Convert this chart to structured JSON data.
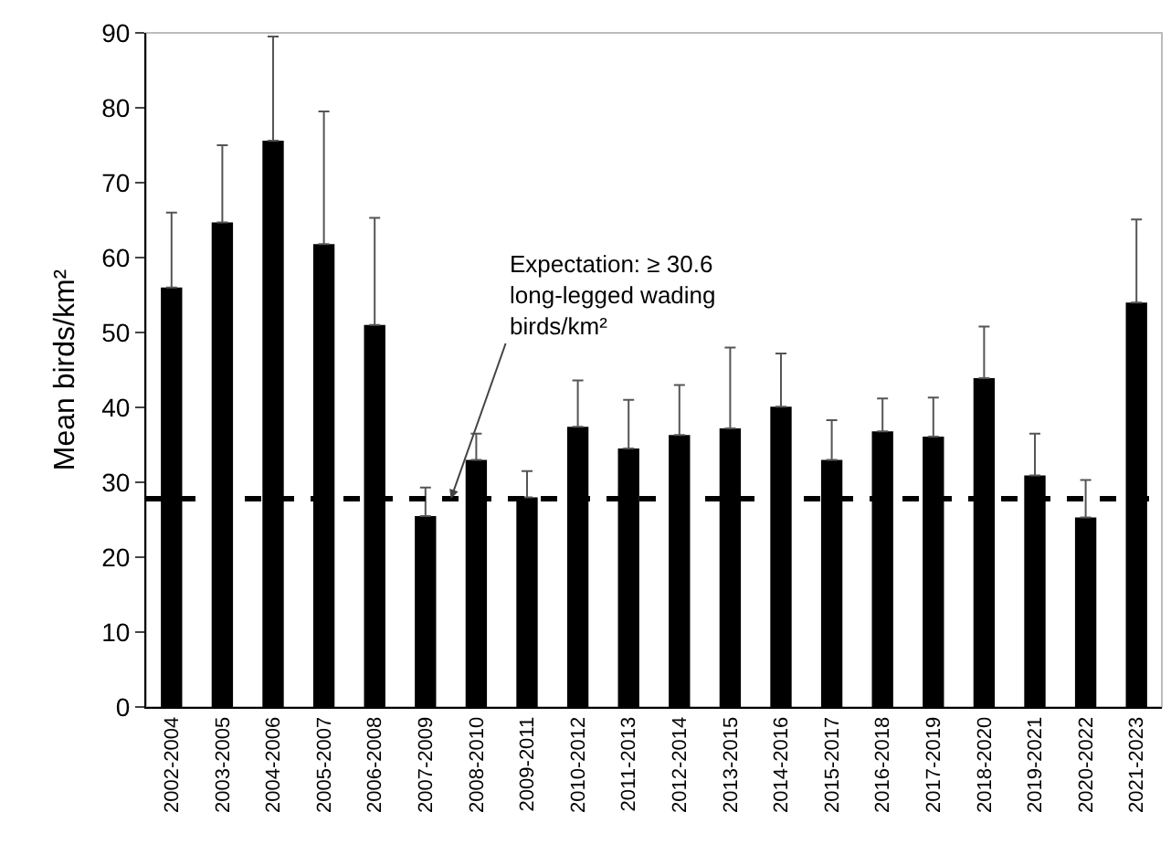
{
  "chart_data": {
    "type": "bar",
    "ylabel": "Mean birds/km²",
    "categories": [
      "2002-2004",
      "2003-2005",
      "2004-2006",
      "2005-2007",
      "2006-2008",
      "2007-2009",
      "2008-2010",
      "2009-2011",
      "2010-2012",
      "2011-2013",
      "2012-2014",
      "2013-2015",
      "2014-2016",
      "2015-2017",
      "2016-2018",
      "2017-2019",
      "2018-2020",
      "2019-2021",
      "2020-2022",
      "2021-2023"
    ],
    "values": [
      56,
      64.7,
      75.6,
      61.8,
      51,
      25.5,
      33,
      28,
      37.4,
      34.5,
      36.3,
      37.2,
      40.1,
      33,
      36.8,
      36.1,
      43.9,
      30.9,
      25.3,
      54
    ],
    "errors": [
      [
        56,
        66
      ],
      [
        64.7,
        75
      ],
      [
        75.6,
        89.5
      ],
      [
        61.8,
        79.5
      ],
      [
        51,
        65.3
      ],
      [
        25.5,
        29.3
      ],
      [
        33,
        36.5
      ],
      [
        28,
        31.5
      ],
      [
        37.4,
        43.6
      ],
      [
        34.5,
        41
      ],
      [
        36.3,
        43
      ],
      [
        37.2,
        48
      ],
      [
        40.1,
        47.2
      ],
      [
        33,
        38.3
      ],
      [
        36.8,
        41.2
      ],
      [
        36.1,
        41.3
      ],
      [
        43.9,
        50.8
      ],
      [
        30.9,
        36.5
      ],
      [
        25.3,
        30.3
      ],
      [
        54,
        65.1
      ]
    ],
    "color": "#000000",
    "ylim": [
      0,
      90
    ],
    "yticks": [
      0,
      10,
      20,
      30,
      40,
      50,
      60,
      70,
      80,
      90
    ],
    "grid": false,
    "ref_lines": [
      {
        "axis": "y",
        "value": 27.8,
        "label": "Expectation: ≥ 30.6 long-legged wading birds/km²",
        "color": "#000000",
        "line_style": "dashed"
      }
    ]
  }
}
